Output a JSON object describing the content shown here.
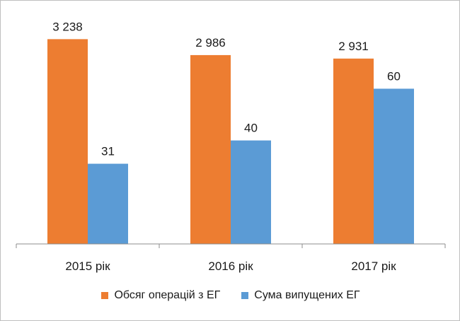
{
  "chart_data": {
    "type": "bar",
    "title": "",
    "xlabel": "",
    "ylabel": "",
    "categories": [
      "2015 рік",
      "2016 рік",
      "2017 рік"
    ],
    "series": [
      {
        "name": "Обсяг операцій з ЕГ",
        "color": "#ed7d31",
        "values": [
          3238,
          2986,
          2931
        ],
        "labels": [
          "3 238",
          "2 986",
          "2 931"
        ],
        "axis": "primary"
      },
      {
        "name": "Сума випущених ЕГ",
        "color": "#5b9bd5",
        "values": [
          31,
          40,
          60
        ],
        "labels": [
          "31",
          "40",
          "60"
        ],
        "axis": "secondary"
      }
    ],
    "ylim_primary": [
      0,
      3600
    ],
    "ylim_secondary": [
      0,
      88
    ],
    "grid": false,
    "legend_position": "bottom"
  }
}
